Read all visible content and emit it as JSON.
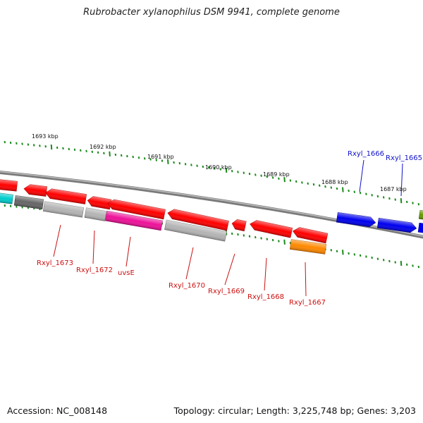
{
  "title": "Rubrobacter xylanophilus DSM 9941, complete genome",
  "footer": {
    "accession": "Accession: NC_008148",
    "stats": "Topology: circular; Length: 3,225,748 bp; Genes: 3,203"
  },
  "colors": {
    "backbone": "#888888",
    "tick": "#1a8a1a",
    "label_reverse": "#cc1111",
    "label_forward": "#1111cc",
    "red": "#ff0000",
    "blue": "#0000ee",
    "grey": "#b4b4b4",
    "dark_grey": "#666666",
    "cyan": "#00cccc",
    "magenta": "#ee1199",
    "orange": "#ff8800",
    "olive": "#669900"
  },
  "kbp_labels": [
    "1693 kbp",
    "1692 kbp",
    "1691 kbp",
    "1690 kbp",
    "1689 kbp",
    "1688 kbp",
    "1687 kbp"
  ],
  "gene_labels": [
    {
      "name": "Rxyl_1673",
      "strand": "reverse"
    },
    {
      "name": "Rxyl_1672",
      "strand": "reverse"
    },
    {
      "name": "uvsE",
      "strand": "reverse"
    },
    {
      "name": "Rxyl_1670",
      "strand": "reverse"
    },
    {
      "name": "Rxyl_1669",
      "strand": "reverse"
    },
    {
      "name": "Rxyl_1668",
      "strand": "reverse"
    },
    {
      "name": "Rxyl_1667",
      "strand": "reverse"
    },
    {
      "name": "Rxyl_1666",
      "strand": "forward"
    },
    {
      "name": "Rxyl_1665",
      "strand": "forward"
    }
  ]
}
